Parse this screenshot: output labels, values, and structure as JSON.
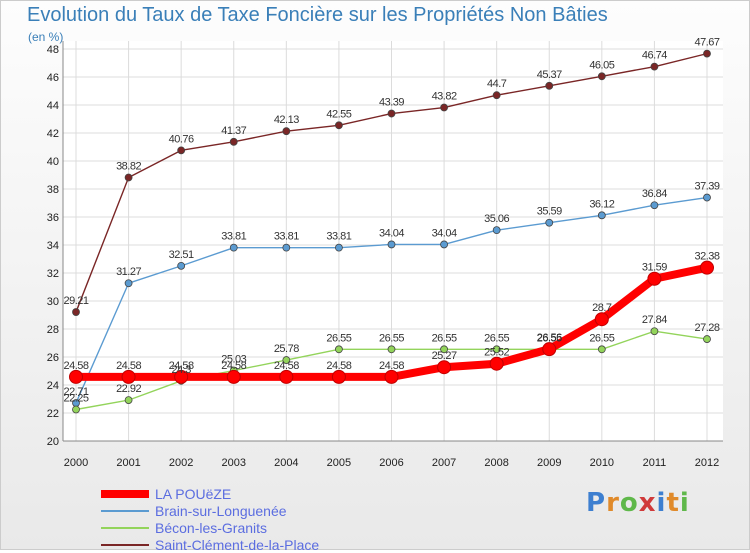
{
  "chart_data": {
    "type": "line",
    "title": "Evolution du Taux de Taxe Foncière sur les Propriétés Non Bâties",
    "subtitle": "(en %)",
    "x": [
      2000,
      2001,
      2002,
      2003,
      2004,
      2005,
      2006,
      2007,
      2008,
      2009,
      2010,
      2011,
      2012
    ],
    "ylim": [
      20,
      48
    ],
    "yticks": [
      20,
      22,
      24,
      26,
      28,
      30,
      32,
      34,
      36,
      38,
      40,
      42,
      44,
      46,
      48
    ],
    "grid": true,
    "legend_position": "bottom-left",
    "series": [
      {
        "name": "Saint-Clément-de-la-Place",
        "color": "#7a2626",
        "values": [
          29.21,
          38.82,
          40.76,
          41.37,
          42.13,
          42.55,
          43.39,
          43.82,
          44.7,
          45.37,
          46.05,
          46.74,
          47.67
        ],
        "labels": [
          "29.21",
          "38.82",
          "40.76",
          "41.37",
          "42.13",
          "42.55",
          "43.39",
          "43.82",
          "44.7",
          "45.37",
          "46.05",
          "46.74",
          "47.67"
        ]
      },
      {
        "name": "Brain-sur-Longuenée",
        "color": "#5b9bd1",
        "values": [
          22.71,
          31.27,
          32.51,
          33.81,
          33.81,
          33.81,
          34.04,
          34.04,
          35.06,
          35.59,
          36.12,
          36.84,
          37.39
        ],
        "labels": [
          "22.71",
          "31.27",
          "32.51",
          "33.81",
          "33.81",
          "33.81",
          "34.04",
          "34.04",
          "35.06",
          "35.59",
          "36.12",
          "36.84",
          "37.39"
        ]
      },
      {
        "name": "Bécon-les-Granits",
        "color": "#93d45b",
        "values": [
          22.25,
          22.92,
          24.3,
          25.03,
          25.78,
          26.55,
          26.55,
          26.55,
          26.55,
          26.55,
          26.55,
          27.84,
          27.28
        ],
        "labels": [
          "22.25",
          "22.92",
          "24.3",
          "25.03",
          "25.78",
          "26.55",
          "26.55",
          "26.55",
          "26.55",
          "26.55",
          "26.55",
          "27.84",
          "27.28"
        ]
      },
      {
        "name": "LA POUëZE",
        "color": "#ff0000",
        "values": [
          24.58,
          24.58,
          24.58,
          24.58,
          24.58,
          24.58,
          24.58,
          25.27,
          25.52,
          26.56,
          28.7,
          31.59,
          32.38
        ],
        "labels": [
          "24.58",
          "24.58",
          "24.58",
          "24.58",
          "24.58",
          "24.58",
          "24.58",
          "25.27",
          "25.52",
          "26.56",
          "28.7",
          "31.59",
          "32.38"
        ]
      }
    ]
  },
  "legend": [
    {
      "name": "LA POUëZE",
      "color": "#ff0000"
    },
    {
      "name": "Brain-sur-Longuenée",
      "color": "#5b9bd1"
    },
    {
      "name": "Bécon-les-Granits",
      "color": "#93d45b"
    },
    {
      "name": "Saint-Clément-de-la-Place",
      "color": "#7a2626"
    }
  ],
  "brand": {
    "letters": [
      "P",
      "r",
      "o",
      "x",
      "i",
      "t",
      "i"
    ],
    "colors": [
      "#3d7fd0",
      "#e08a2a",
      "#5fb84a",
      "#d03a3a",
      "#3d7fd0",
      "#e08a2a",
      "#5fb84a"
    ]
  }
}
